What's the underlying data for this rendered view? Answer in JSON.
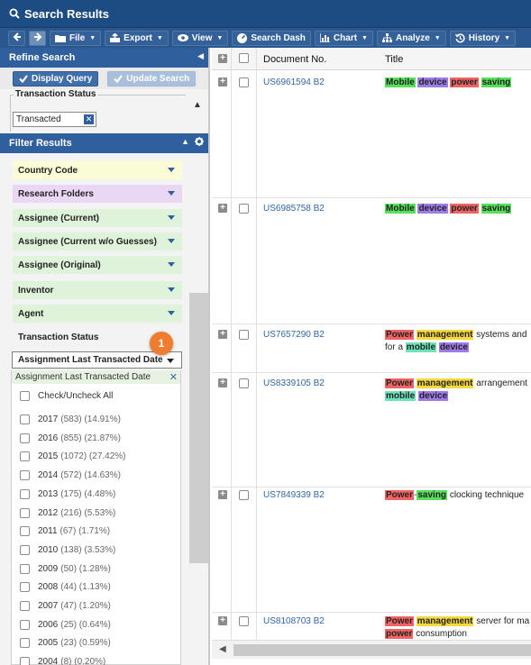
{
  "window": {
    "title": "Search Results"
  },
  "toolbar": {
    "file": "File",
    "export": "Export",
    "view": "View",
    "search_dash": "Search Dash",
    "chart": "Chart",
    "analyze": "Analyze",
    "history": "History"
  },
  "refine": {
    "header": "Refine Search",
    "display_query": "Display Query",
    "update_search": "Update Search",
    "transaction_status_legend": "Transaction Status",
    "transaction_status_value": "Transacted"
  },
  "filter": {
    "header": "Filter Results",
    "facets": [
      "Country Code",
      "Research Folders",
      "Assignee (Current)",
      "Assignee (Current w/o Guesses)",
      "Assignee (Original)",
      "Inventor",
      "Agent",
      "Transaction Status",
      "Assignment Last Transacted Date"
    ],
    "step_badge": "1",
    "dropdown": {
      "header": "Assignment Last Transacted Date",
      "check_all": "Check/Uncheck All",
      "years": [
        {
          "year": "2017",
          "count": "(583) (14.91%)"
        },
        {
          "year": "2016",
          "count": "(855) (21.87%)"
        },
        {
          "year": "2015",
          "count": "(1072) (27.42%)"
        },
        {
          "year": "2014",
          "count": "(572) (14.63%)"
        },
        {
          "year": "2013",
          "count": "(175) (4.48%)"
        },
        {
          "year": "2012",
          "count": "(216) (5.53%)"
        },
        {
          "year": "2011",
          "count": "(67) (1.71%)"
        },
        {
          "year": "2010",
          "count": "(138) (3.53%)"
        },
        {
          "year": "2009",
          "count": "(50) (1.28%)"
        },
        {
          "year": "2008",
          "count": "(44) (1.13%)"
        },
        {
          "year": "2007",
          "count": "(47) (1.20%)"
        },
        {
          "year": "2006",
          "count": "(25) (0.64%)"
        },
        {
          "year": "2005",
          "count": "(23) (0.59%)"
        },
        {
          "year": "2004",
          "count": "(8) (0.20%)"
        }
      ]
    }
  },
  "results": {
    "col_doc": "Document No.",
    "col_title": "Title",
    "rows": [
      {
        "doc": "US6961594 B2",
        "w": [
          "Mobile",
          "device",
          "power",
          "saving"
        ]
      },
      {
        "doc": "US6985758 B2",
        "w": [
          "Mobile",
          "device",
          "power",
          "saving"
        ]
      },
      {
        "doc": "US7657290 B2",
        "w": [
          "Power",
          "management",
          " systems and",
          "for a ",
          "mobile",
          "device"
        ]
      },
      {
        "doc": "US8339105 B2",
        "w": [
          "Power",
          "management",
          " arrangement",
          "mobile",
          "device"
        ]
      },
      {
        "doc": "US7849339 B2",
        "w": [
          "Power",
          "-",
          "saving",
          " clocking technique"
        ]
      },
      {
        "doc": "US8108703 B2",
        "w": [
          "Power",
          "management",
          " server for ma",
          "power",
          " consumption"
        ]
      }
    ]
  }
}
